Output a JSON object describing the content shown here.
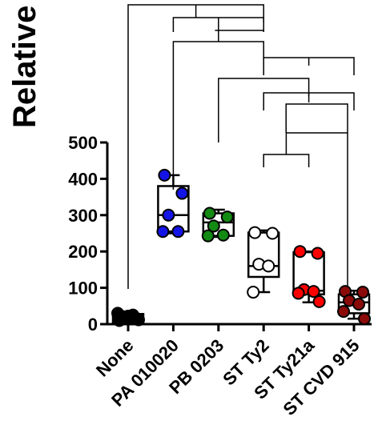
{
  "chart_data": {
    "type": "box",
    "title": "",
    "ylabel": "Relative",
    "xlabel": "",
    "ylim": [
      0,
      500
    ],
    "yticks": [
      0,
      100,
      200,
      300,
      400,
      500
    ],
    "grid": false,
    "legend": "none",
    "categories": [
      "None",
      "PA 010020",
      "PB 0203",
      "ST Ty2",
      "ST Ty21a",
      "ST CVD 915"
    ],
    "series": [
      {
        "category": "None",
        "color": "#000000",
        "points": [
          10,
          15,
          20,
          25,
          30,
          12,
          22,
          18
        ],
        "box": {
          "min": 0,
          "q1": 5,
          "median": 15,
          "q3": 28,
          "max": 35
        }
      },
      {
        "category": "PA 010020",
        "color": "#1414e6",
        "points": [
          410,
          360,
          300,
          255,
          255
        ],
        "box": {
          "min": 250,
          "q1": 255,
          "median": 300,
          "q3": 380,
          "max": 410
        }
      },
      {
        "category": "PB 0203",
        "color": "#138a13",
        "points": [
          305,
          295,
          270,
          245,
          243
        ],
        "box": {
          "min": 240,
          "q1": 243,
          "median": 280,
          "q3": 305,
          "max": 315
        }
      },
      {
        "category": "ST Ty2",
        "color": "#ffffff",
        "points": [
          252,
          250,
          165,
          160,
          88
        ],
        "box": {
          "min": 88,
          "q1": 130,
          "median": 160,
          "q3": 252,
          "max": 258
        }
      },
      {
        "category": "ST Ty21a",
        "color": "#ff0000",
        "points": [
          200,
          195,
          95,
          90,
          85,
          62
        ],
        "box": {
          "min": 60,
          "q1": 82,
          "median": 92,
          "q3": 198,
          "max": 200
        }
      },
      {
        "category": "ST CVD 915",
        "color": "#8b0a0a",
        "points": [
          90,
          88,
          65,
          55,
          35,
          15
        ],
        "box": {
          "min": 15,
          "q1": 30,
          "median": 60,
          "q3": 82,
          "max": 92
        }
      }
    ],
    "significance_brackets": [
      {
        "from": "None",
        "to": "ST Ty2",
        "level": 1
      },
      {
        "from": "PA 010020",
        "to": "ST Ty2",
        "level": 2
      },
      {
        "from": "ST Ty2",
        "to": "ST CVD 915",
        "level": 3
      },
      {
        "from": "PB 0203",
        "to": "ST Ty21a",
        "level": 4
      },
      {
        "from": "ST Ty2",
        "to": "ST CVD 915",
        "level": 5
      },
      {
        "from": "ST Ty2",
        "to": "ST Ty21a",
        "level": 6
      }
    ]
  }
}
